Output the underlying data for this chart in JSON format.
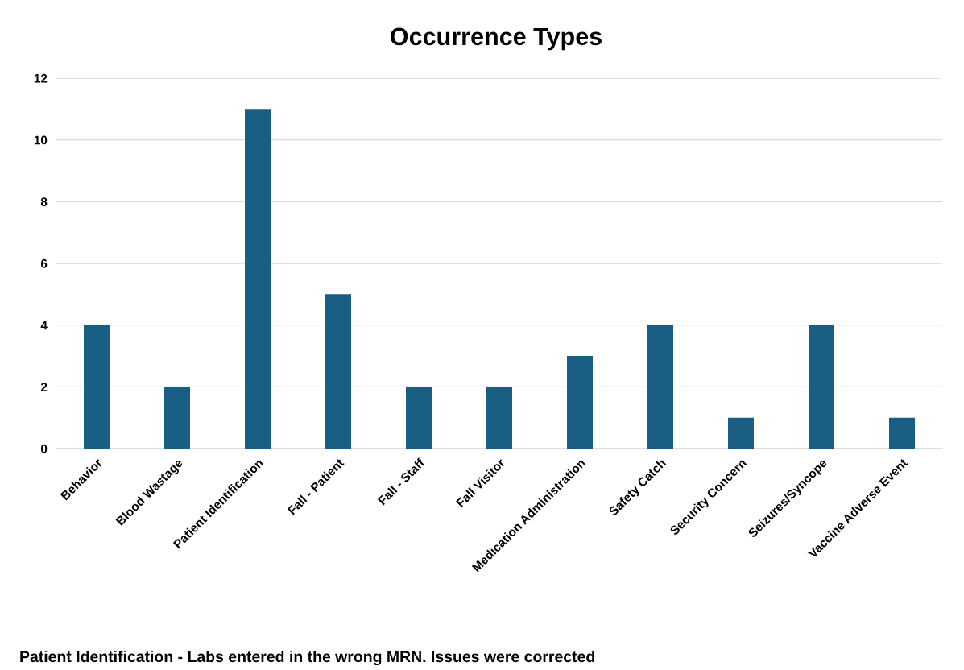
{
  "chart_data": {
    "type": "bar",
    "title": "Occurrence Types",
    "categories": [
      "Behavior",
      "Blood Wastage",
      "Patient Identification",
      "Fall - Patient",
      "Fall - Staff",
      "Fall Visitor",
      "Medication Administration",
      "Safety Catch",
      "Security Concern",
      "Seizures/Syncope",
      "Vaccine Adverse Event"
    ],
    "values": [
      4,
      2,
      11,
      5,
      2,
      2,
      3,
      4,
      1,
      4,
      1
    ],
    "color": "#185f83",
    "ylim": [
      0,
      12
    ],
    "yticks": [
      0,
      2,
      4,
      6,
      8,
      10,
      12
    ],
    "grid": "y",
    "annotations": [
      "Patient Identification - Labs entered in the wrong MRN. Issues were corrected"
    ]
  }
}
